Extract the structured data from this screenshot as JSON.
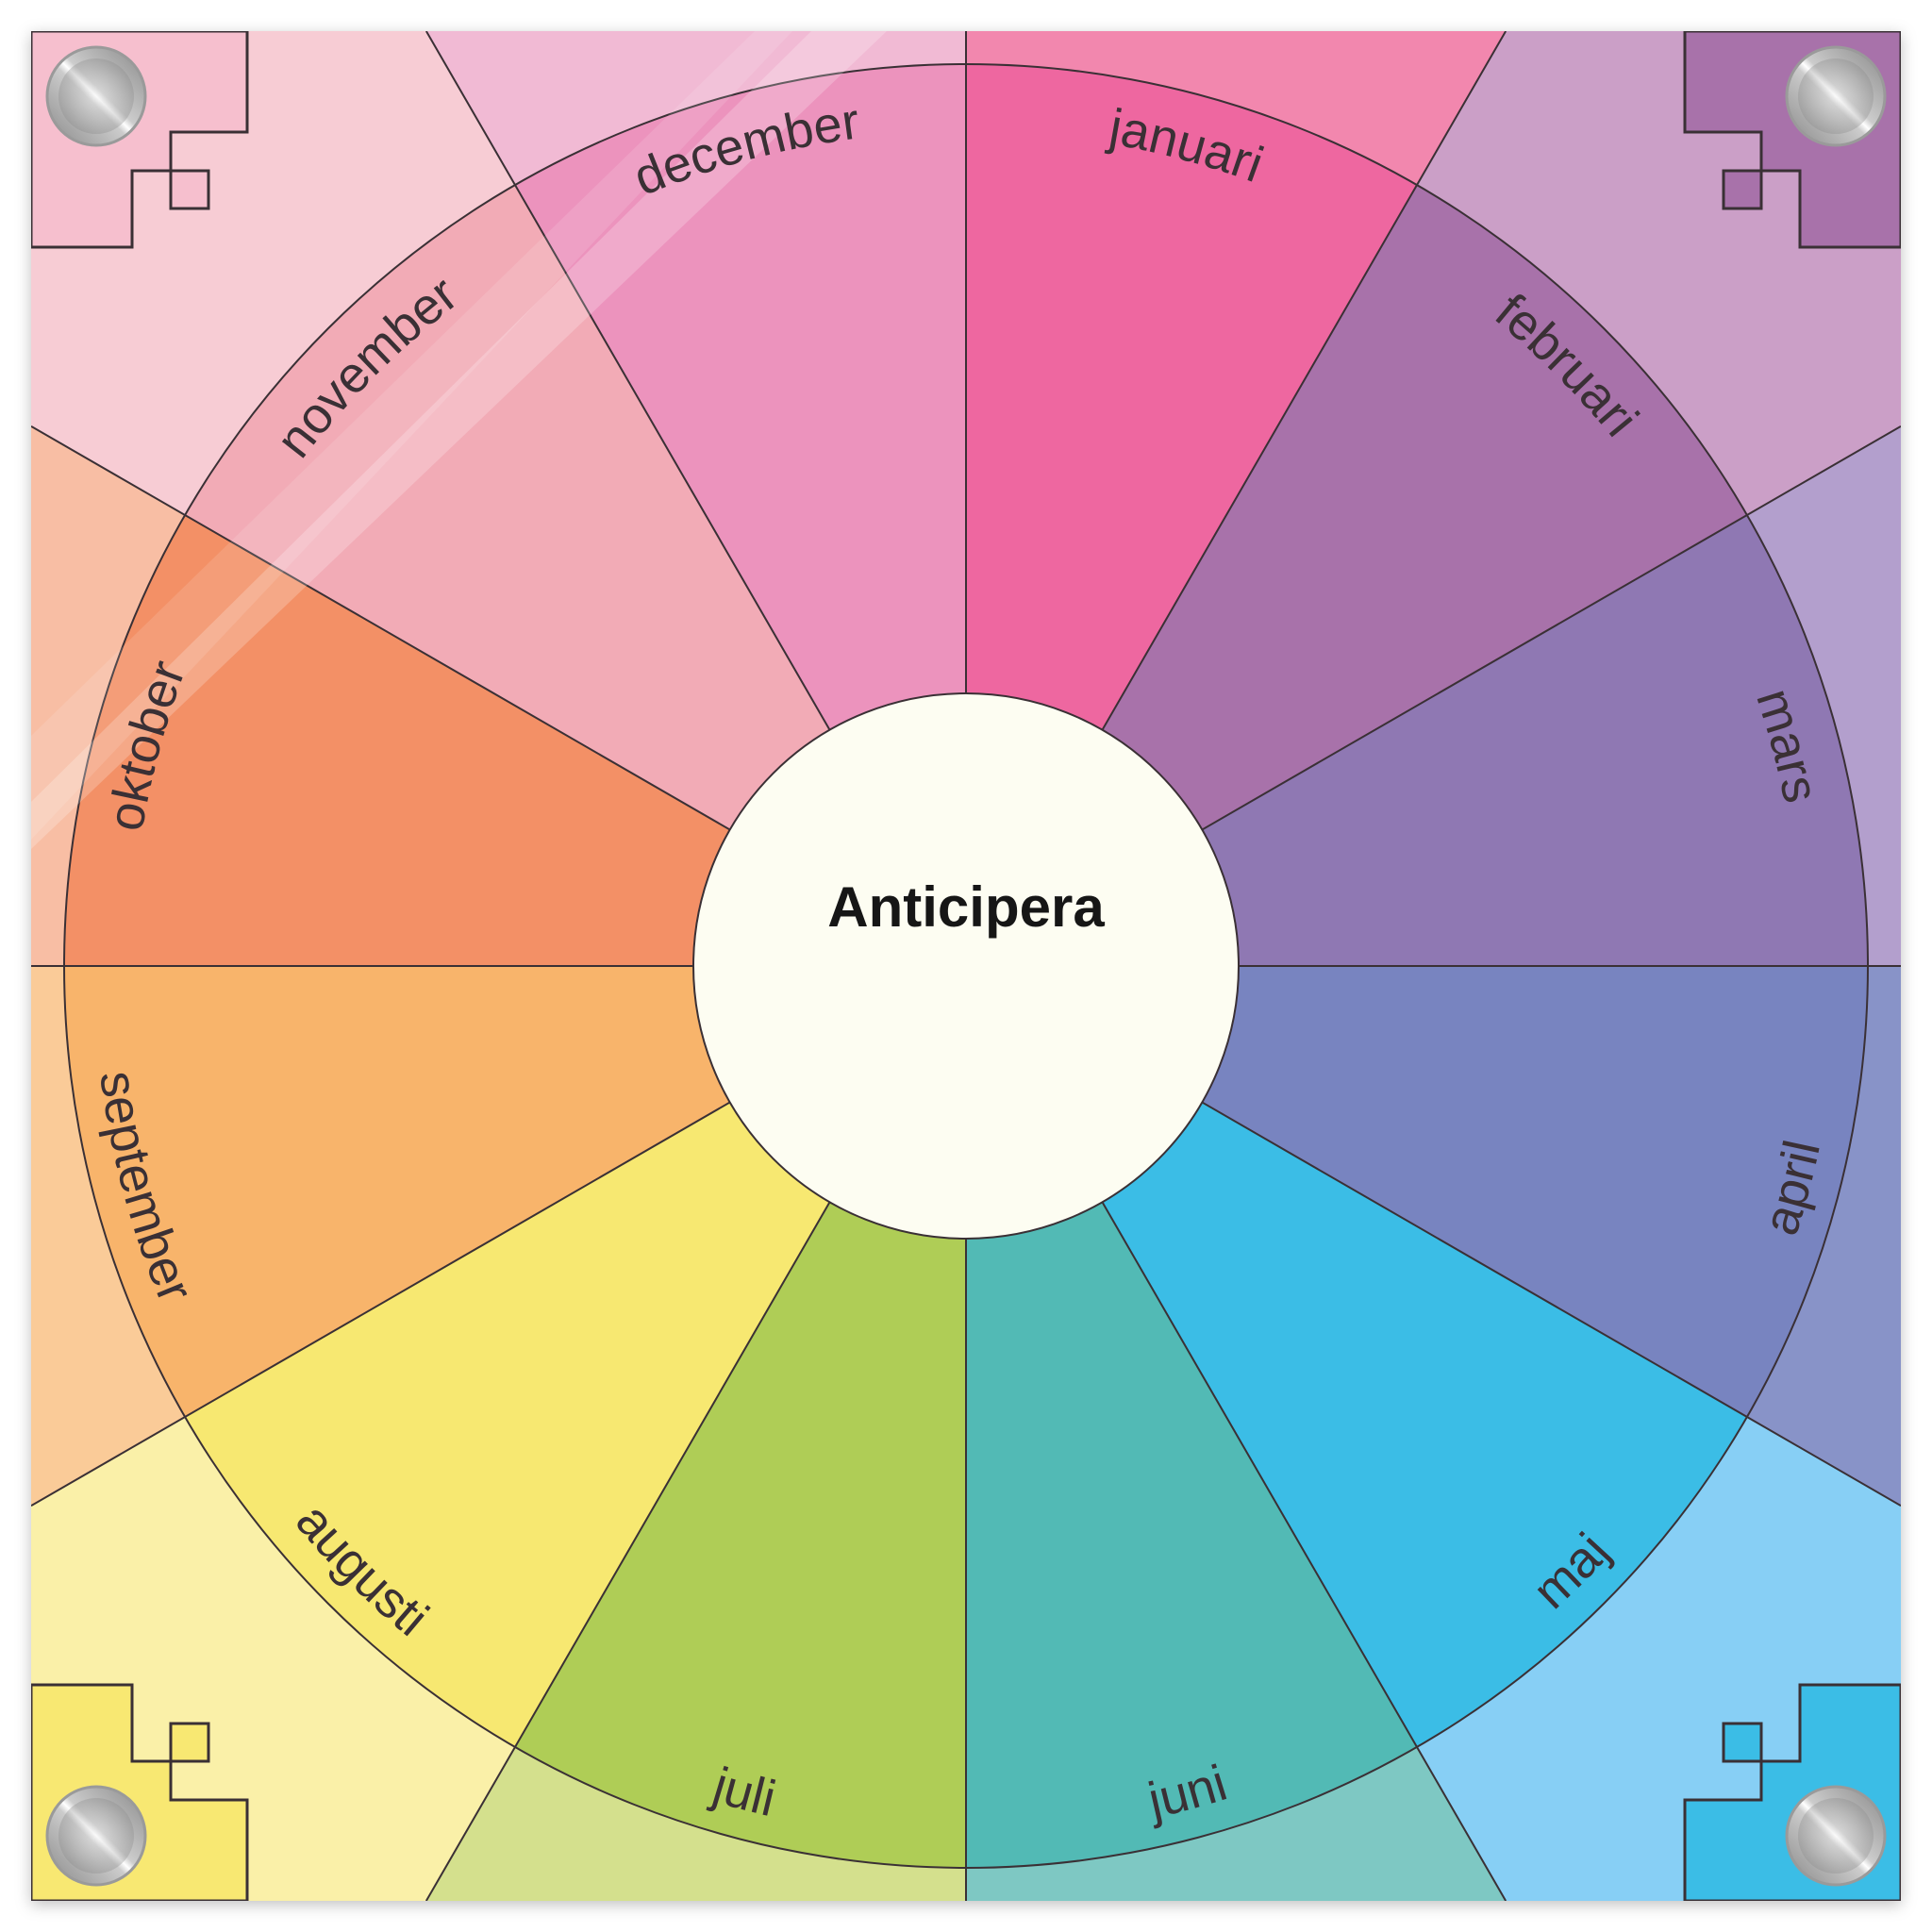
{
  "title": "Anticipera",
  "months": [
    {
      "label": "januari",
      "color": "#ee67a0",
      "outer_color": "#f287ae"
    },
    {
      "label": "februari",
      "color": "#a872aa",
      "outer_color": "#cb9fc7"
    },
    {
      "label": "mars",
      "color": "#8f78b3",
      "outer_color": "#b39fcd"
    },
    {
      "label": "april",
      "color": "#7884c0",
      "outer_color": "#8893c8"
    },
    {
      "label": "maj",
      "color": "#3bbde6",
      "outer_color": "#87cff5"
    },
    {
      "label": "juni",
      "color": "#52bab5",
      "outer_color": "#7ec8c3"
    },
    {
      "label": "juli",
      "color": "#afcd56",
      "outer_color": "#d4e08d"
    },
    {
      "label": "augusti",
      "color": "#f7e871",
      "outer_color": "#faf0a8"
    },
    {
      "label": "september",
      "color": "#f8b46b",
      "outer_color": "#facb98"
    },
    {
      "label": "oktober",
      "color": "#f39066",
      "outer_color": "#f8bea4"
    },
    {
      "label": "november",
      "color": "#f2abb6",
      "outer_color": "#f7ccd4"
    },
    {
      "label": "december",
      "color": "#ec93bd",
      "outer_color": "#f1bad4"
    }
  ],
  "corners": {
    "top_left": "#f6bfce",
    "top_right": "#a872aa",
    "bottom_left": "#f8e872",
    "bottom_right": "#3bbde6"
  },
  "center_color": "#fdfdf2",
  "line_color": "#3a3035"
}
